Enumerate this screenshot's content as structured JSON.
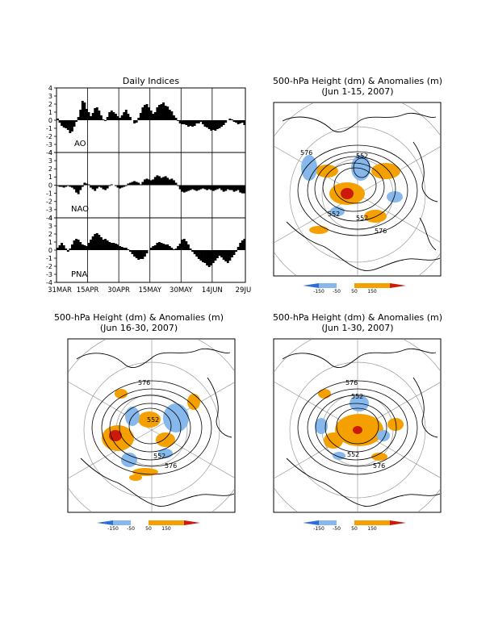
{
  "colors": {
    "pos_light": "#f4a000",
    "pos_strong": "#cc1a0a",
    "neg_light": "#86b8ec",
    "neg_strong": "#2e6fd6"
  },
  "chart_data": [
    {
      "type": "bar",
      "title": "Daily Indices",
      "x_start_date": "2007-03-31",
      "x_end_date": "2007-06-29",
      "x_tick_labels": [
        "31MAR",
        "15APR",
        "30APR",
        "15MAY",
        "30MAY",
        "14JUN",
        "29JU"
      ],
      "ylim": [
        -4,
        4
      ],
      "y_ticks": [
        -4,
        -3,
        -2,
        -1,
        0,
        1,
        2,
        3,
        4
      ],
      "series": [
        {
          "name": "AO",
          "values": [
            0.2,
            -0.3,
            -0.7,
            -0.9,
            -1.0,
            -1.2,
            -1.6,
            -1.4,
            -0.8,
            -0.2,
            0.4,
            1.3,
            2.4,
            2.2,
            1.4,
            1.0,
            0.5,
            0.9,
            1.5,
            1.6,
            1.2,
            0.6,
            0.1,
            -0.1,
            0.4,
            1.0,
            1.2,
            1.0,
            0.8,
            0.5,
            0.3,
            0.6,
            1.0,
            1.3,
            0.8,
            0.4,
            0.0,
            -0.4,
            -0.3,
            0.3,
            0.9,
            1.6,
            1.9,
            2.0,
            1.6,
            1.2,
            0.8,
            1.0,
            1.6,
            1.9,
            2.0,
            2.2,
            1.8,
            1.7,
            1.3,
            1.1,
            0.6,
            0.3,
            -0.1,
            -0.4,
            -0.5,
            -0.5,
            -0.6,
            -0.8,
            -0.7,
            -0.8,
            -0.7,
            -0.4,
            -0.4,
            -0.2,
            -0.5,
            -0.8,
            -0.9,
            -1.1,
            -1.3,
            -1.2,
            -1.3,
            -1.1,
            -1.0,
            -0.8,
            -0.6,
            -0.3,
            0.0,
            0.2,
            0.1,
            -0.2,
            -0.3,
            -0.5,
            -0.4,
            -0.3,
            -0.6
          ]
        },
        {
          "name": "NAO",
          "values": [
            -0.1,
            -0.2,
            -0.2,
            -0.3,
            -0.2,
            -0.1,
            -0.2,
            -0.3,
            -0.5,
            -0.9,
            -1.1,
            -0.6,
            -0.2,
            0.3,
            0.2,
            0.1,
            -0.3,
            -0.5,
            -0.7,
            -0.4,
            -0.2,
            -0.3,
            -0.5,
            -0.6,
            -0.4,
            -0.1,
            0.1,
            0.0,
            -0.1,
            -0.3,
            -0.4,
            -0.3,
            -0.2,
            -0.1,
            0.2,
            0.3,
            0.4,
            0.5,
            0.4,
            0.3,
            0.1,
            0.4,
            0.7,
            0.8,
            0.7,
            0.6,
            0.7,
            1.0,
            1.2,
            1.1,
            0.9,
            1.0,
            1.1,
            0.9,
            0.7,
            0.8,
            0.6,
            0.3,
            -0.1,
            -0.5,
            -0.8,
            -0.9,
            -0.8,
            -0.7,
            -0.6,
            -0.5,
            -0.6,
            -0.7,
            -0.6,
            -0.5,
            -0.4,
            -0.5,
            -0.6,
            -0.5,
            -0.6,
            -0.7,
            -0.6,
            -0.5,
            -0.4,
            -0.6,
            -0.8,
            -0.7,
            -0.5,
            -0.6,
            -0.6,
            -0.8,
            -0.7,
            -0.6,
            -0.9,
            -1.0,
            -1.0
          ]
        },
        {
          "name": "PNA",
          "values": [
            0.3,
            0.6,
            0.9,
            0.6,
            0.2,
            -0.2,
            0.2,
            0.7,
            1.2,
            1.4,
            1.3,
            1.0,
            0.7,
            0.6,
            0.5,
            0.9,
            1.3,
            1.7,
            2.0,
            2.1,
            1.9,
            1.6,
            1.3,
            1.4,
            1.2,
            1.0,
            0.9,
            0.9,
            0.8,
            0.7,
            0.5,
            0.4,
            0.3,
            0.3,
            0.1,
            -0.2,
            -0.5,
            -0.8,
            -1.0,
            -1.2,
            -1.1,
            -1.1,
            -0.8,
            -0.4,
            0.0,
            0.3,
            0.5,
            0.6,
            0.9,
            1.0,
            0.9,
            0.8,
            0.7,
            0.7,
            0.5,
            0.3,
            0.1,
            0.2,
            0.5,
            0.8,
            1.3,
            1.4,
            1.1,
            0.7,
            0.2,
            -0.2,
            -0.5,
            -0.8,
            -1.1,
            -1.3,
            -1.5,
            -1.6,
            -1.9,
            -2.1,
            -1.9,
            -1.6,
            -1.3,
            -1.0,
            -0.7,
            -0.9,
            -1.2,
            -1.4,
            -1.6,
            -1.3,
            -0.9,
            -0.6,
            -0.2,
            0.4,
            0.9,
            1.2,
            1.4
          ]
        }
      ]
    },
    {
      "type": "heatmap",
      "title_line1": "500-hPa Height (dm) & Anomalies (m)",
      "title_line2": "(Jun 1-15, 2007)",
      "contour_labels": [
        "576",
        "552",
        "552",
        "552",
        "576"
      ],
      "colorbar_labels": [
        "-150",
        "-50",
        "50",
        "150"
      ]
    },
    {
      "type": "heatmap",
      "title_line1": "500-hPa Height (dm) & Anomalies (m)",
      "title_line2": "(Jun 16-30, 2007)",
      "contour_labels": [
        "576",
        "552",
        "552",
        "576"
      ],
      "colorbar_labels": [
        "-150",
        "-50",
        "50",
        "150"
      ]
    },
    {
      "type": "heatmap",
      "title_line1": "500-hPa Height (dm) & Anomalies (m)",
      "title_line2": "(Jun 1-30, 2007)",
      "contour_labels": [
        "576",
        "552",
        "552",
        "576"
      ],
      "colorbar_labels": [
        "-150",
        "-50",
        "50",
        "150"
      ]
    }
  ]
}
